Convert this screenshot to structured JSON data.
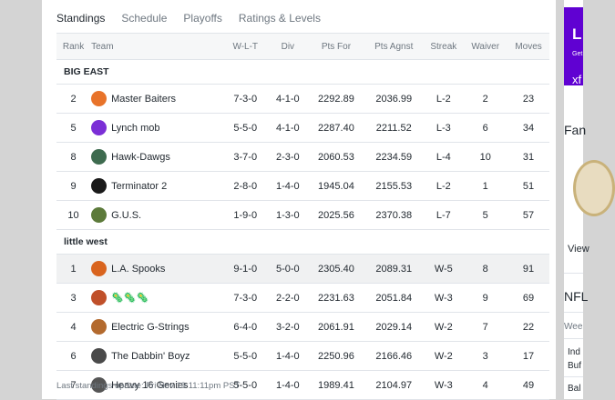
{
  "tabs": [
    "Standings",
    "Schedule",
    "Playoffs",
    "Ratings & Levels"
  ],
  "columns": {
    "rank": "Rank",
    "team": "Team",
    "wlt": "W-L-T",
    "div": "Div",
    "pf": "Pts For",
    "pa": "Pts Agnst",
    "streak": "Streak",
    "waiver": "Waiver",
    "moves": "Moves"
  },
  "groups": [
    {
      "name": "BIG EAST",
      "rows": [
        {
          "rank": "2",
          "team": "Master Baiters",
          "wlt": "7-3-0",
          "div": "4-1-0",
          "pf": "2292.89",
          "pa": "2036.99",
          "streak": "L-2",
          "waiver": "2",
          "moves": "23",
          "logo": "#e8732a"
        },
        {
          "rank": "5",
          "team": "Lynch mob",
          "wlt": "5-5-0",
          "div": "4-1-0",
          "pf": "2287.40",
          "pa": "2211.52",
          "streak": "L-3",
          "waiver": "6",
          "moves": "34",
          "logo": "#7b2fd6"
        },
        {
          "rank": "8",
          "team": "Hawk-Dawgs",
          "wlt": "3-7-0",
          "div": "2-3-0",
          "pf": "2060.53",
          "pa": "2234.59",
          "streak": "L-4",
          "waiver": "10",
          "moves": "31",
          "logo": "#3e6b4f"
        },
        {
          "rank": "9",
          "team": "Terminator 2",
          "wlt": "2-8-0",
          "div": "1-4-0",
          "pf": "1945.04",
          "pa": "2155.53",
          "streak": "L-2",
          "waiver": "1",
          "moves": "51",
          "logo": "#1a1a1a"
        },
        {
          "rank": "10",
          "team": "G.U.S.",
          "wlt": "1-9-0",
          "div": "1-3-0",
          "pf": "2025.56",
          "pa": "2370.38",
          "streak": "L-7",
          "waiver": "5",
          "moves": "57",
          "logo": "#5c7a3a"
        }
      ]
    },
    {
      "name": "little west",
      "rows": [
        {
          "rank": "1",
          "team": "L.A. Spooks",
          "wlt": "9-1-0",
          "div": "5-0-0",
          "pf": "2305.40",
          "pa": "2089.31",
          "streak": "W-5",
          "waiver": "8",
          "moves": "91",
          "logo": "#d9641e"
        },
        {
          "rank": "3",
          "team": "🦠🦠🦠",
          "wlt": "7-3-0",
          "div": "2-2-0",
          "pf": "2231.63",
          "pa": "2051.84",
          "streak": "W-3",
          "waiver": "9",
          "moves": "69",
          "logo": "#c0502a"
        },
        {
          "rank": "4",
          "team": "Electric G-Strings",
          "wlt": "6-4-0",
          "div": "3-2-0",
          "pf": "2061.91",
          "pa": "2029.14",
          "streak": "W-2",
          "waiver": "7",
          "moves": "22",
          "logo": "#b36a2e"
        },
        {
          "rank": "6",
          "team": "The Dabbin' Boyz",
          "wlt": "5-5-0",
          "div": "1-4-0",
          "pf": "2250.96",
          "pa": "2166.46",
          "streak": "W-2",
          "waiver": "3",
          "moves": "17",
          "logo": "#4a4a4a"
        },
        {
          "rank": "7",
          "team": "Heavy 16 Genies",
          "wlt": "5-5-0",
          "div": "1-4-0",
          "pf": "1989.41",
          "pa": "2104.97",
          "streak": "W-3",
          "waiver": "4",
          "moves": "49",
          "logo": "#555555"
        }
      ]
    }
  ],
  "footer": "Last standings update: Fri Nov 19 11:11pm PST",
  "side": {
    "ad_big": "L",
    "ad_small": "Get",
    "ad_logo": "xf",
    "fan": "Fan",
    "view": "View",
    "nfl": "NFL",
    "week": "Wee",
    "ind": "Ind",
    "buf": "Buf",
    "bal": "Bal"
  }
}
